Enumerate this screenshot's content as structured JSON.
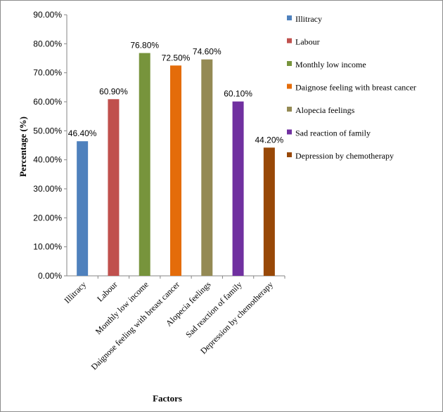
{
  "chart_data": {
    "type": "bar",
    "title": "",
    "xlabel": "Factors",
    "ylabel": "Percentage (%)",
    "ylim": [
      0,
      90
    ],
    "ytick_step": 10,
    "ytick_format": "percent_2dp",
    "categories": [
      "Illitracy",
      "Labour",
      "Monthly low income",
      "Daignose feeling with breast cancer",
      "Alopecia feelings",
      "Sad reaction of family",
      "Depression by chemotherapy"
    ],
    "values": [
      46.4,
      60.9,
      76.8,
      72.5,
      74.6,
      60.1,
      44.2
    ],
    "data_labels": [
      "46.40%",
      "60.90%",
      "76.80%",
      "72.50%",
      "74.60%",
      "60.10%",
      "44.20%"
    ],
    "colors": [
      "#4f81bd",
      "#c0504d",
      "#77943c",
      "#e46c0a",
      "#948a54",
      "#7030a0",
      "#984807"
    ],
    "legend": {
      "position": "right",
      "entries": [
        "Illitracy",
        "Labour",
        "Monthly low income",
        "Daignose feeling with breast cancer",
        "Alopecia feelings",
        "Sad reaction of family",
        "Depression by chemotherapy"
      ]
    },
    "grid": false
  }
}
